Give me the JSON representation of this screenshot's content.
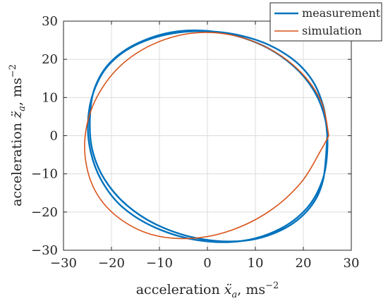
{
  "chart_data": {
    "type": "line",
    "title": "",
    "xlabel": {
      "prefix": "acceleration ",
      "symbol": "ẍ",
      "subscript": "a",
      "unit": ", ms",
      "exponent": "−2"
    },
    "ylabel": {
      "prefix": "acceleration ",
      "symbol": "z̈",
      "subscript": "a",
      "unit": ", ms",
      "exponent": "−2"
    },
    "xlim": [
      -30,
      30
    ],
    "ylim": [
      -30,
      30
    ],
    "xticks": [
      -30,
      -20,
      -10,
      0,
      10,
      20,
      30
    ],
    "yticks": [
      -30,
      -20,
      -10,
      0,
      10,
      20,
      30
    ],
    "xtick_labels": [
      "−30",
      "−20",
      "−10",
      "0",
      "10",
      "20",
      "30"
    ],
    "ytick_labels": [
      "−30",
      "−20",
      "−10",
      "0",
      "10",
      "20",
      "30"
    ],
    "grid": true,
    "legend": {
      "placement": "top-right",
      "entries": [
        "measurement",
        "simulation"
      ]
    },
    "series": [
      {
        "name": "measurement",
        "color": "#0072BD",
        "x": [
          25.0,
          24.2,
          21.8,
          17.4,
          10.6,
          2.0,
          -7.2,
          -15.2,
          -20.8,
          -23.8,
          -24.9,
          -24.3,
          -22.0,
          -17.8,
          -11.0,
          -2.3,
          7.0,
          15.0,
          20.8,
          24.0,
          25.0,
          24.6,
          22.3,
          18.0,
          11.4,
          2.8,
          -6.4,
          -14.6,
          -20.4,
          -23.6,
          -24.5,
          -24.0,
          -21.5,
          -16.9,
          -10.1,
          -1.5,
          7.8,
          15.6,
          21.2,
          24.1,
          25.0
        ],
        "y": [
          0,
          7.5,
          14.6,
          20.4,
          24.9,
          27.2,
          26.8,
          23.6,
          18.2,
          11.2,
          3.4,
          -4.4,
          -11.9,
          -18.6,
          -24.0,
          -27.3,
          -27.6,
          -24.5,
          -18.9,
          -11.6,
          -3.7,
          4.1,
          11.6,
          18.2,
          23.7,
          27.0,
          27.3,
          24.2,
          19.0,
          12.1,
          4.2,
          -3.7,
          -11.3,
          -18.1,
          -23.6,
          -27.0,
          -27.5,
          -24.6,
          -19.1,
          -11.7,
          0
        ]
      },
      {
        "name": "simulation",
        "color": "#D95319",
        "x": [
          25.3,
          23.8,
          19.5,
          13.0,
          4.9,
          -3.5,
          -11.6,
          -18.3,
          -23.0,
          -25.3,
          -25.3,
          -23.0,
          -18.3,
          -11.6,
          -3.5,
          4.9,
          13.0,
          19.5,
          23.8,
          25.3
        ],
        "y": [
          0,
          8.7,
          16.6,
          22.7,
          26.4,
          26.8,
          23.8,
          18.1,
          10.2,
          1.6,
          -7.2,
          -15.3,
          -21.7,
          -25.9,
          -26.9,
          -24.8,
          -19.7,
          -12.3,
          -3.5,
          0
        ]
      }
    ]
  }
}
